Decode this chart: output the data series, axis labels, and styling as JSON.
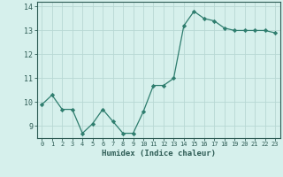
{
  "x": [
    0,
    1,
    2,
    3,
    4,
    5,
    6,
    7,
    8,
    9,
    10,
    11,
    12,
    13,
    14,
    15,
    16,
    17,
    18,
    19,
    20,
    21,
    22,
    23
  ],
  "y": [
    9.9,
    10.3,
    9.7,
    9.7,
    8.7,
    9.1,
    9.7,
    9.2,
    8.7,
    8.7,
    9.6,
    10.7,
    10.7,
    11.0,
    13.2,
    13.8,
    13.5,
    13.4,
    13.1,
    13.0,
    13.0,
    13.0,
    13.0,
    12.9
  ],
  "xlabel": "Humidex (Indice chaleur)",
  "ylim": [
    8.5,
    14.2
  ],
  "xlim": [
    -0.5,
    23.5
  ],
  "yticks": [
    9,
    10,
    11,
    12,
    13,
    14
  ],
  "xticks": [
    0,
    1,
    2,
    3,
    4,
    5,
    6,
    7,
    8,
    9,
    10,
    11,
    12,
    13,
    14,
    15,
    16,
    17,
    18,
    19,
    20,
    21,
    22,
    23
  ],
  "line_color": "#2e7d6e",
  "marker_color": "#2e7d6e",
  "bg_color": "#d6f0ec",
  "grid_color": "#b8d8d4",
  "tick_label_color": "#2e5c55",
  "spine_color": "#2e5c55"
}
